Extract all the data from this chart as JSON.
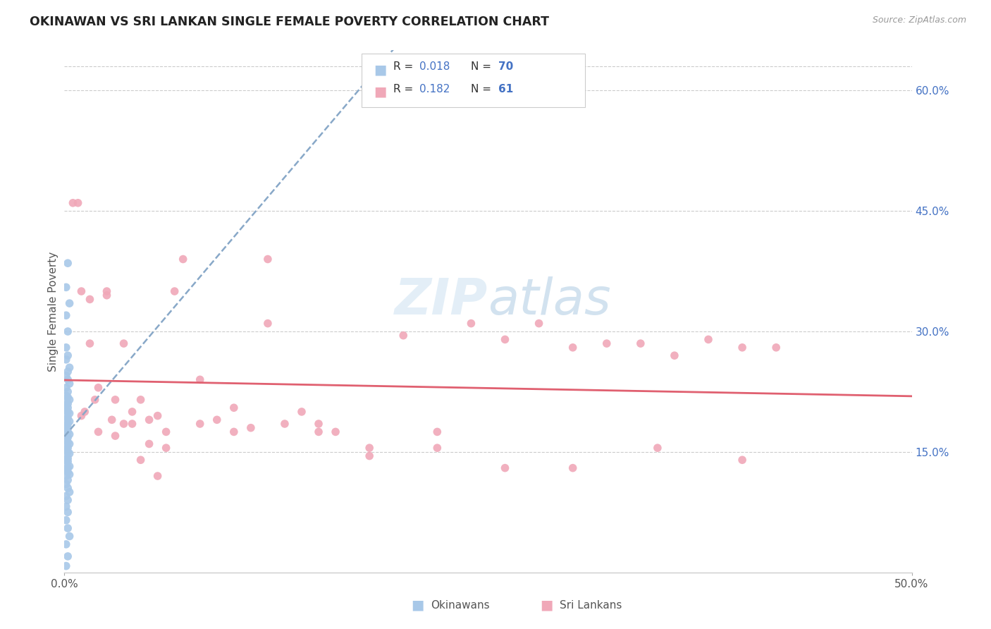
{
  "title": "OKINAWAN VS SRI LANKAN SINGLE FEMALE POVERTY CORRELATION CHART",
  "source": "Source: ZipAtlas.com",
  "ylabel": "Single Female Poverty",
  "right_yticks": [
    "60.0%",
    "45.0%",
    "30.0%",
    "15.0%"
  ],
  "right_ytick_vals": [
    0.6,
    0.45,
    0.3,
    0.15
  ],
  "okinawan_color": "#a8c8e8",
  "srilankan_color": "#f0a8b8",
  "trend_okinawan_color": "#88a8c8",
  "trend_srilankan_color": "#e06070",
  "background_color": "#ffffff",
  "watermark_color": "#c8dff0",
  "xlim": [
    0.0,
    0.5
  ],
  "ylim": [
    0.0,
    0.65
  ],
  "okinawan_x": [
    0.002,
    0.001,
    0.003,
    0.001,
    0.002,
    0.001,
    0.002,
    0.001,
    0.003,
    0.002,
    0.001,
    0.002,
    0.003,
    0.001,
    0.002,
    0.001,
    0.002,
    0.003,
    0.001,
    0.002,
    0.001,
    0.002,
    0.001,
    0.002,
    0.003,
    0.001,
    0.002,
    0.001,
    0.003,
    0.002,
    0.001,
    0.002,
    0.001,
    0.002,
    0.003,
    0.001,
    0.002,
    0.001,
    0.002,
    0.003,
    0.001,
    0.002,
    0.001,
    0.002,
    0.003,
    0.001,
    0.002,
    0.001,
    0.002,
    0.001,
    0.003,
    0.002,
    0.001,
    0.002,
    0.003,
    0.001,
    0.002,
    0.001,
    0.002,
    0.003,
    0.001,
    0.002,
    0.001,
    0.002,
    0.001,
    0.002,
    0.003,
    0.001,
    0.002,
    0.001
  ],
  "okinawan_y": [
    0.385,
    0.355,
    0.335,
    0.32,
    0.3,
    0.28,
    0.27,
    0.265,
    0.255,
    0.25,
    0.245,
    0.24,
    0.235,
    0.23,
    0.225,
    0.22,
    0.218,
    0.215,
    0.212,
    0.21,
    0.207,
    0.205,
    0.202,
    0.2,
    0.198,
    0.195,
    0.192,
    0.19,
    0.188,
    0.185,
    0.182,
    0.18,
    0.178,
    0.175,
    0.172,
    0.17,
    0.168,
    0.165,
    0.162,
    0.16,
    0.158,
    0.155,
    0.152,
    0.15,
    0.148,
    0.145,
    0.142,
    0.14,
    0.138,
    0.135,
    0.132,
    0.13,
    0.128,
    0.125,
    0.122,
    0.12,
    0.115,
    0.11,
    0.105,
    0.1,
    0.095,
    0.09,
    0.082,
    0.075,
    0.065,
    0.055,
    0.045,
    0.035,
    0.02,
    0.008
  ],
  "srilankan_x": [
    0.005,
    0.008,
    0.01,
    0.012,
    0.015,
    0.018,
    0.02,
    0.025,
    0.028,
    0.03,
    0.035,
    0.04,
    0.045,
    0.05,
    0.055,
    0.06,
    0.065,
    0.07,
    0.08,
    0.09,
    0.1,
    0.11,
    0.12,
    0.13,
    0.14,
    0.15,
    0.16,
    0.18,
    0.2,
    0.22,
    0.24,
    0.26,
    0.28,
    0.3,
    0.32,
    0.34,
    0.36,
    0.38,
    0.4,
    0.42,
    0.01,
    0.02,
    0.03,
    0.04,
    0.05,
    0.06,
    0.08,
    0.1,
    0.12,
    0.15,
    0.18,
    0.22,
    0.26,
    0.3,
    0.35,
    0.4,
    0.015,
    0.025,
    0.035,
    0.045,
    0.055
  ],
  "srilankan_y": [
    0.46,
    0.46,
    0.35,
    0.2,
    0.34,
    0.215,
    0.23,
    0.345,
    0.19,
    0.215,
    0.185,
    0.2,
    0.215,
    0.19,
    0.195,
    0.175,
    0.35,
    0.39,
    0.185,
    0.19,
    0.175,
    0.18,
    0.39,
    0.185,
    0.2,
    0.185,
    0.175,
    0.155,
    0.295,
    0.155,
    0.31,
    0.29,
    0.31,
    0.28,
    0.285,
    0.285,
    0.27,
    0.29,
    0.28,
    0.28,
    0.195,
    0.175,
    0.17,
    0.185,
    0.16,
    0.155,
    0.24,
    0.205,
    0.31,
    0.175,
    0.145,
    0.175,
    0.13,
    0.13,
    0.155,
    0.14,
    0.285,
    0.35,
    0.285,
    0.14,
    0.12
  ]
}
